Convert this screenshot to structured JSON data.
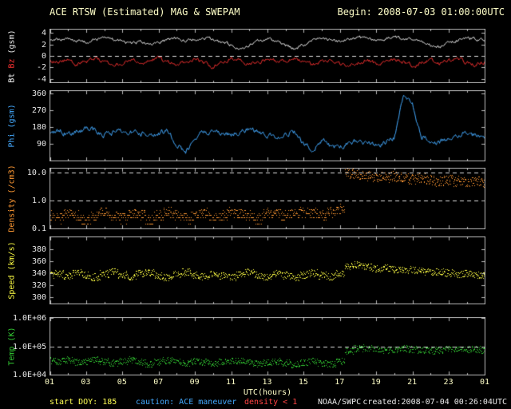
{
  "header": {
    "title": "ACE RTSW (Estimated) MAG & SWEPAM",
    "begin": "Begin: 2008-07-03 01:00:00UTC"
  },
  "footer": {
    "start_doy": "start DOY: 185",
    "caution": "caution: ACE maneuver",
    "caution_density": "density < 1",
    "agency": "NOAA/SWPC",
    "created": "created:2008-07-04 00:26:04UTC"
  },
  "x_axis": {
    "label": "UTC(hours)",
    "tick_labels": [
      "01",
      "03",
      "05",
      "07",
      "09",
      "11",
      "13",
      "15",
      "17",
      "19",
      "21",
      "23",
      "01"
    ],
    "hours_range": [
      0,
      24
    ]
  },
  "colors": {
    "background": "#000000",
    "frame": "#b8b8b8",
    "dashed": "#dddddd",
    "title_text": "#ffffc8",
    "tick_text": "#e8e8e8",
    "bt": "#ffffff",
    "bz": "#ff3333",
    "phi": "#44aaff",
    "density": "#ff9933",
    "speed": "#ffff44",
    "temp": "#33cc33",
    "start_doy_text": "#ffff55",
    "caution_text": "#44aaff",
    "caution_density_text": "#ff4444"
  },
  "chart_data": [
    {
      "name": "mag",
      "type": "line",
      "scale": "linear",
      "ylim": [
        -4.6,
        4.6
      ],
      "yticks": [
        {
          "v": 4,
          "label": "4"
        },
        {
          "v": 2,
          "label": "2"
        },
        {
          "v": 0,
          "label": "0"
        },
        {
          "v": -2,
          "label": "-2"
        },
        {
          "v": -4,
          "label": "-4"
        }
      ],
      "dashed": [
        0
      ],
      "ylabel_parts": [
        {
          "text": "Bt",
          "color": "#ffffff"
        },
        {
          "text": "Bz",
          "color": "#ff3333"
        },
        {
          "text": "(gsm)",
          "color": "#e8e8e8"
        }
      ],
      "x0": 0,
      "dx": 0.5,
      "series": [
        {
          "name": "Bt",
          "color": "#ffffff",
          "style": "line",
          "noise": 0.22,
          "y": [
            2.6,
            2.8,
            3.0,
            2.7,
            2.4,
            2.9,
            3.1,
            2.8,
            2.5,
            2.2,
            2.6,
            1.9,
            2.3,
            2.8,
            3.0,
            2.6,
            2.9,
            3.2,
            2.8,
            2.4,
            1.8,
            1.2,
            2.0,
            2.6,
            2.9,
            2.5,
            1.8,
            1.3,
            2.0,
            2.6,
            3.0,
            2.8,
            2.5,
            2.9,
            3.2,
            3.0,
            2.7,
            3.1,
            3.3,
            3.0,
            2.8,
            2.4,
            1.9,
            1.5,
            2.2,
            2.8,
            3.1,
            2.9,
            2.7
          ]
        },
        {
          "name": "Bz",
          "color": "#ff3333",
          "style": "line",
          "noise": 0.28,
          "y": [
            -0.8,
            -1.2,
            -0.6,
            -1.5,
            -1.0,
            -0.4,
            -1.1,
            -1.7,
            -1.2,
            -0.6,
            -1.4,
            -0.9,
            -0.3,
            -1.0,
            -1.6,
            -1.1,
            -0.5,
            -1.2,
            -1.8,
            -1.0,
            -0.4,
            -0.9,
            -1.5,
            -1.0,
            -0.5,
            -1.2,
            -0.8,
            -0.3,
            -1.0,
            -1.6,
            -1.1,
            -0.6,
            -1.3,
            -1.8,
            -1.2,
            -0.7,
            -1.4,
            -1.0,
            -0.5,
            -1.1,
            -1.7,
            -1.2,
            -0.6,
            -1.3,
            -0.9,
            -0.4,
            -1.1,
            -1.5,
            -1.0
          ]
        }
      ]
    },
    {
      "name": "phi",
      "type": "line",
      "scale": "linear",
      "ylim": [
        0,
        372
      ],
      "yticks": [
        {
          "v": 360,
          "label": "360"
        },
        {
          "v": 270,
          "label": "270"
        },
        {
          "v": 180,
          "label": "180"
        },
        {
          "v": 90,
          "label": "90"
        }
      ],
      "dashed": [],
      "ylabel_parts": [
        {
          "text": "Phi (gsm)",
          "color": "#44aaff"
        }
      ],
      "x0": 0,
      "dx": 0.5,
      "series": [
        {
          "name": "Phi",
          "color": "#44aaff",
          "style": "line",
          "noise": 12,
          "y": [
            150,
            165,
            145,
            155,
            170,
            160,
            140,
            150,
            165,
            155,
            145,
            135,
            150,
            160,
            80,
            45,
            120,
            150,
            160,
            150,
            140,
            155,
            165,
            150,
            140,
            130,
            145,
            155,
            90,
            60,
            100,
            80,
            70,
            90,
            110,
            95,
            85,
            100,
            120,
            340,
            300,
            130,
            110,
            95,
            120,
            140,
            150,
            130,
            115
          ]
        }
      ]
    },
    {
      "name": "density",
      "type": "scatter",
      "scale": "log",
      "ylim": [
        0.1,
        14
      ],
      "yticks": [
        {
          "v": 10,
          "label": "10.0"
        },
        {
          "v": 1,
          "label": "1.0"
        },
        {
          "v": 0.1,
          "label": "0.1"
        }
      ],
      "dashed": [
        10,
        1
      ],
      "ylabel_parts": [
        {
          "text": "Density (/cm3)",
          "color": "#ff9933"
        }
      ],
      "x0": 0,
      "dx": 0.5,
      "series": [
        {
          "name": "Density",
          "color": "#ff9933",
          "style": "dots",
          "noise": 0.18,
          "y": [
            0.3,
            0.25,
            0.35,
            0.3,
            0.2,
            0.3,
            0.4,
            0.3,
            0.25,
            0.35,
            0.3,
            0.2,
            0.3,
            0.4,
            0.3,
            0.25,
            0.3,
            0.35,
            0.25,
            0.3,
            0.4,
            0.35,
            0.3,
            0.25,
            0.35,
            0.4,
            0.3,
            0.35,
            0.4,
            0.35,
            0.3,
            0.4,
            0.5,
            9.5,
            8.5,
            8.0,
            7.5,
            7.0,
            7.5,
            6.5,
            6.0,
            6.5,
            5.5,
            5.0,
            5.5,
            5.0,
            4.5,
            4.8,
            4.5
          ]
        }
      ]
    },
    {
      "name": "speed",
      "type": "scatter",
      "scale": "linear",
      "ylim": [
        290,
        400
      ],
      "yticks": [
        {
          "v": 380,
          "label": "380"
        },
        {
          "v": 360,
          "label": "360"
        },
        {
          "v": 340,
          "label": "340"
        },
        {
          "v": 320,
          "label": "320"
        },
        {
          "v": 300,
          "label": "300"
        }
      ],
      "dashed": [],
      "ylabel_parts": [
        {
          "text": "Speed (km/s)",
          "color": "#ffff44"
        }
      ],
      "x0": 0,
      "dx": 0.5,
      "series": [
        {
          "name": "Speed",
          "color": "#ffff44",
          "style": "dots",
          "noise": 6,
          "y": [
            338,
            340,
            336,
            342,
            338,
            334,
            340,
            344,
            338,
            335,
            340,
            342,
            337,
            334,
            339,
            343,
            338,
            335,
            340,
            337,
            334,
            339,
            342,
            338,
            335,
            340,
            337,
            334,
            338,
            341,
            337,
            335,
            340,
            352,
            355,
            351,
            348,
            350,
            347,
            345,
            346,
            344,
            342,
            343,
            341,
            339,
            340,
            338,
            337
          ]
        }
      ]
    },
    {
      "name": "temp",
      "type": "scatter",
      "scale": "log",
      "ylim": [
        10000,
        1000000
      ],
      "yticks": [
        {
          "v": 1000000,
          "label": "1.0E+06"
        },
        {
          "v": 100000,
          "label": "1.0E+05"
        },
        {
          "v": 10000,
          "label": "1.0E+04"
        }
      ],
      "dashed": [
        100000
      ],
      "ylabel_parts": [
        {
          "text": "Temp (K)",
          "color": "#33cc33"
        }
      ],
      "x0": 0,
      "dx": 0.5,
      "series": [
        {
          "name": "Temp",
          "color": "#33cc33",
          "style": "dots",
          "noise": 0.12,
          "y": [
            32000,
            30000,
            35000,
            28000,
            30000,
            34000,
            30000,
            26000,
            30000,
            33000,
            28000,
            24000,
            28000,
            32000,
            30000,
            26000,
            30000,
            28000,
            25000,
            28000,
            32000,
            30000,
            27000,
            24000,
            28000,
            30000,
            26000,
            23000,
            27000,
            30000,
            26000,
            24000,
            30000,
            70000,
            85000,
            90000,
            80000,
            75000,
            80000,
            85000,
            80000,
            75000,
            70000,
            75000,
            80000,
            85000,
            80000,
            78000,
            75000
          ]
        }
      ]
    }
  ]
}
